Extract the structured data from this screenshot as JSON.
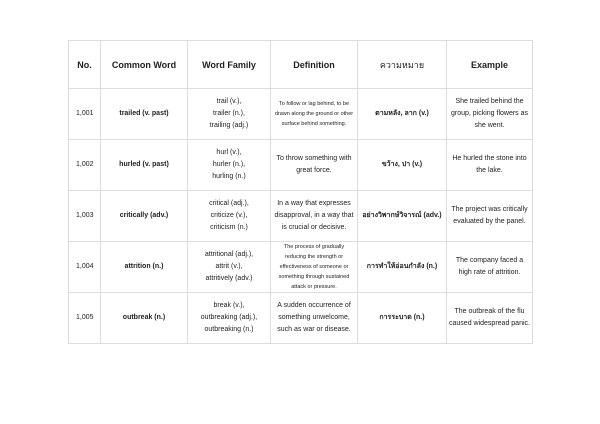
{
  "headers": [
    "No.",
    "Common Word",
    "Word Family",
    "Definition",
    "ความหมาย",
    "Example"
  ],
  "rows": [
    {
      "no": "1,001",
      "word": "trailed (v. past)",
      "family": [
        "trail (v.),",
        "trailer (n.),",
        "trailing (adj.)"
      ],
      "definition": "To follow or lag behind, to be drawn along the ground or other surface behind something.",
      "thai": "ตามหลัง, ลาก (v.)",
      "example": "She trailed behind the group, picking flowers as she went."
    },
    {
      "no": "1,002",
      "word": "hurled (v. past)",
      "family": [
        "hurl (v.),",
        "hurler (n.),",
        "hurling (n.)"
      ],
      "definition": "To throw something with great force.",
      "thai": "ขว้าง, ปา (v.)",
      "example": "He hurled the stone into the lake."
    },
    {
      "no": "1,003",
      "word": "critically (adv.)",
      "family": [
        "critical (adj.),",
        "criticize (v.),",
        "criticism (n.)"
      ],
      "definition": "In a way that expresses disapproval, in a way that is crucial or decisive.",
      "thai": "อย่างวิพากษ์วิจารณ์ (adv.)",
      "example": "The project was critically evaluated by the panel."
    },
    {
      "no": "1,004",
      "word": "attrition (n.)",
      "family": [
        "attritional (adj.),",
        "attrit (v.),",
        "attritively (adv.)"
      ],
      "definition": "The process of gradually reducing the strength or effectiveness of someone or something through sustained attack or pressure.",
      "thai": "การทำให้อ่อนกำลัง (n.)",
      "example": "The company faced a high rate of attrition."
    },
    {
      "no": "1,005",
      "word": "outbreak (n.)",
      "family": [
        "break (v.),",
        "outbreaking (adj.),",
        "outbreaking (n.)"
      ],
      "definition": "A sudden occurrence of something unwelcome, such as war or disease.",
      "thai": "การระบาด (n.)",
      "example": "The outbreak of the flu caused widespread panic."
    }
  ]
}
